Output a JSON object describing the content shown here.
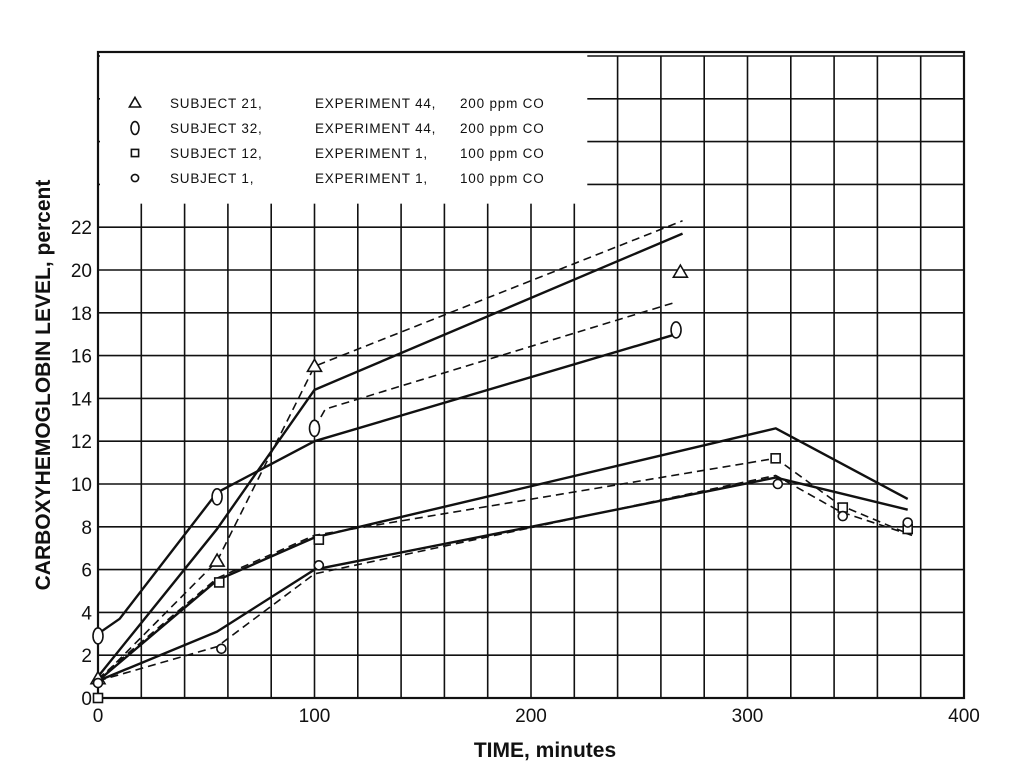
{
  "chart_data": {
    "type": "line",
    "title": "",
    "xlabel": "TIME, minutes",
    "ylabel": "CARBOXYHEMOGLOBIN LEVEL, percent",
    "xlim": [
      0,
      400
    ],
    "ylim": [
      0,
      30
    ],
    "xticks": [
      0,
      100,
      200,
      300,
      400
    ],
    "yticks": [
      0,
      2,
      4,
      6,
      8,
      10,
      12,
      14,
      16,
      18,
      20,
      22
    ],
    "grid": true,
    "grid_step": {
      "x": 20,
      "y": 2
    },
    "legend_position": "top-left",
    "series": [
      {
        "name": "SUBJECT 21, EXPERIMENT 44, 200 ppm CO",
        "legend": [
          "SUBJECT 21,",
          "EXPERIMENT 44,",
          "200 ppm CO"
        ],
        "marker": "triangle",
        "points": [
          [
            0,
            0.9
          ],
          [
            55,
            6.4
          ],
          [
            100,
            15.5
          ],
          [
            269,
            19.9
          ]
        ],
        "solid": [
          [
            0,
            1.0
          ],
          [
            55,
            7.9
          ],
          [
            100,
            14.4
          ],
          [
            270,
            21.7
          ]
        ],
        "dashed": [
          [
            0,
            0.8
          ],
          [
            55,
            6.4
          ],
          [
            100,
            15.5
          ],
          [
            270,
            22.3
          ]
        ]
      },
      {
        "name": "SUBJECT 32, EXPERIMENT 44, 200 ppm CO",
        "legend": [
          "SUBJECT 32,",
          "EXPERIMENT 44,",
          "200 ppm CO"
        ],
        "marker": "ellipse",
        "points": [
          [
            0,
            2.9
          ],
          [
            55,
            9.4
          ],
          [
            100,
            12.6
          ],
          [
            267,
            17.2
          ]
        ],
        "solid": [
          [
            0,
            3.0
          ],
          [
            10,
            3.7
          ],
          [
            55,
            9.6
          ],
          [
            100,
            12.0
          ],
          [
            267,
            17.0
          ]
        ],
        "dashed": [
          [
            100,
            12.6
          ],
          [
            105,
            13.5
          ],
          [
            267,
            18.5
          ]
        ]
      },
      {
        "name": "SUBJECT 12, EXPERIMENT 1, 100 ppm CO",
        "legend": [
          "SUBJECT 12,",
          "EXPERIMENT  1,",
          "100 ppm CO"
        ],
        "marker": "square",
        "points": [
          [
            0,
            0.0
          ],
          [
            56,
            5.4
          ],
          [
            102,
            7.4
          ],
          [
            313,
            11.2
          ],
          [
            344,
            8.9
          ],
          [
            374,
            7.9
          ]
        ],
        "solid": [
          [
            0,
            0.8
          ],
          [
            55,
            5.5
          ],
          [
            100,
            7.5
          ],
          [
            313,
            12.6
          ],
          [
            374,
            9.3
          ]
        ],
        "dashed": [
          [
            0,
            0.9
          ],
          [
            55,
            5.6
          ],
          [
            100,
            7.6
          ],
          [
            313,
            11.2
          ],
          [
            343,
            9.0
          ],
          [
            376,
            7.6
          ]
        ]
      },
      {
        "name": "SUBJECT 1, EXPERIMENT 1, 100 ppm CO",
        "legend": [
          "SUBJECT  1,",
          "EXPERIMENT  1,",
          "100 ppm CO"
        ],
        "marker": "circle",
        "points": [
          [
            0,
            0.7
          ],
          [
            57,
            2.3
          ],
          [
            102,
            6.2
          ],
          [
            314,
            10.0
          ],
          [
            344,
            8.5
          ],
          [
            374,
            8.2
          ]
        ],
        "solid": [
          [
            0,
            0.8
          ],
          [
            55,
            3.1
          ],
          [
            100,
            6.0
          ],
          [
            200,
            8.0
          ],
          [
            313,
            10.3
          ],
          [
            374,
            8.8
          ]
        ],
        "dashed": [
          [
            0,
            0.8
          ],
          [
            55,
            2.4
          ],
          [
            100,
            5.8
          ],
          [
            313,
            10.4
          ],
          [
            343,
            8.7
          ],
          [
            376,
            7.6
          ]
        ]
      }
    ],
    "colors": {
      "ink": "#111111",
      "background": "#ffffff"
    }
  }
}
